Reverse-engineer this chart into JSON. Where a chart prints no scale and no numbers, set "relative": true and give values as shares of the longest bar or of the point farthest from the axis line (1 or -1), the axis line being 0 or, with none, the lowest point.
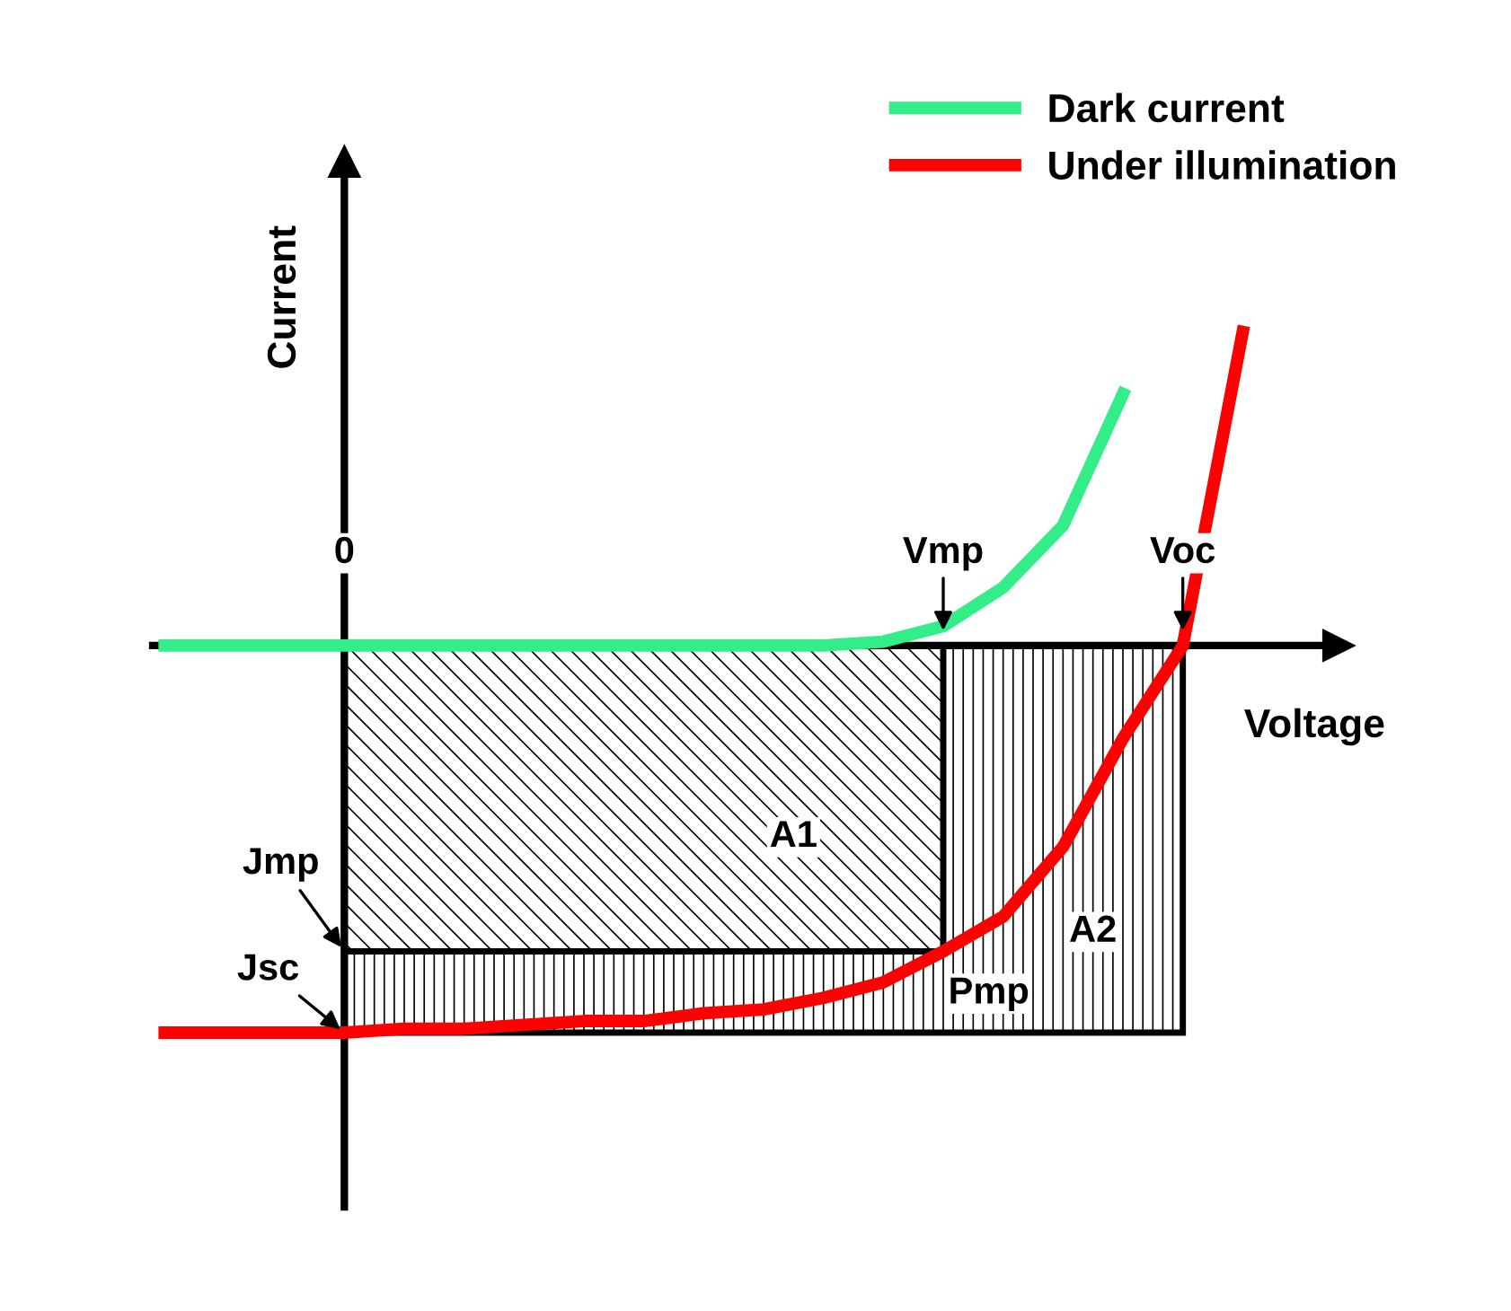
{
  "chart_data": {
    "type": "line",
    "relative": true,
    "xlabel": "Voltage",
    "ylabel": "Current",
    "legend": "top right",
    "marker": "none",
    "line_style": "solid",
    "categories": [
      null,
      null,
      null,
      "0",
      null,
      null,
      null,
      null,
      null,
      null,
      null,
      null,
      null,
      "Vmp",
      null,
      null,
      null,
      "Voc",
      null
    ],
    "series": [
      {
        "name": "Dark current",
        "color": "#33ee88",
        "values": [
          0,
          0,
          0,
          0,
          0,
          0,
          0,
          0,
          0,
          0,
          0,
          0,
          0.01,
          0.05,
          0.15,
          0.31,
          0.65,
          null,
          null
        ]
      },
      {
        "name": "Under illumination",
        "color": "#ff0000",
        "values": [
          -1,
          -1,
          -1,
          -1,
          -0.99,
          -0.99,
          -0.98,
          -0.97,
          -0.97,
          -0.95,
          -0.94,
          -0.91,
          -0.87,
          -0.79,
          -0.7,
          -0.52,
          -0.24,
          0,
          0.81
        ]
      }
    ],
    "annotations": [
      "Jmp",
      {
        "text": "Jsc",
        "x": "0",
        "y": -1
      },
      {
        "text": "Pmp",
        "x": "Vmp",
        "y": -0.79
      },
      "A1",
      "A2"
    ]
  }
}
